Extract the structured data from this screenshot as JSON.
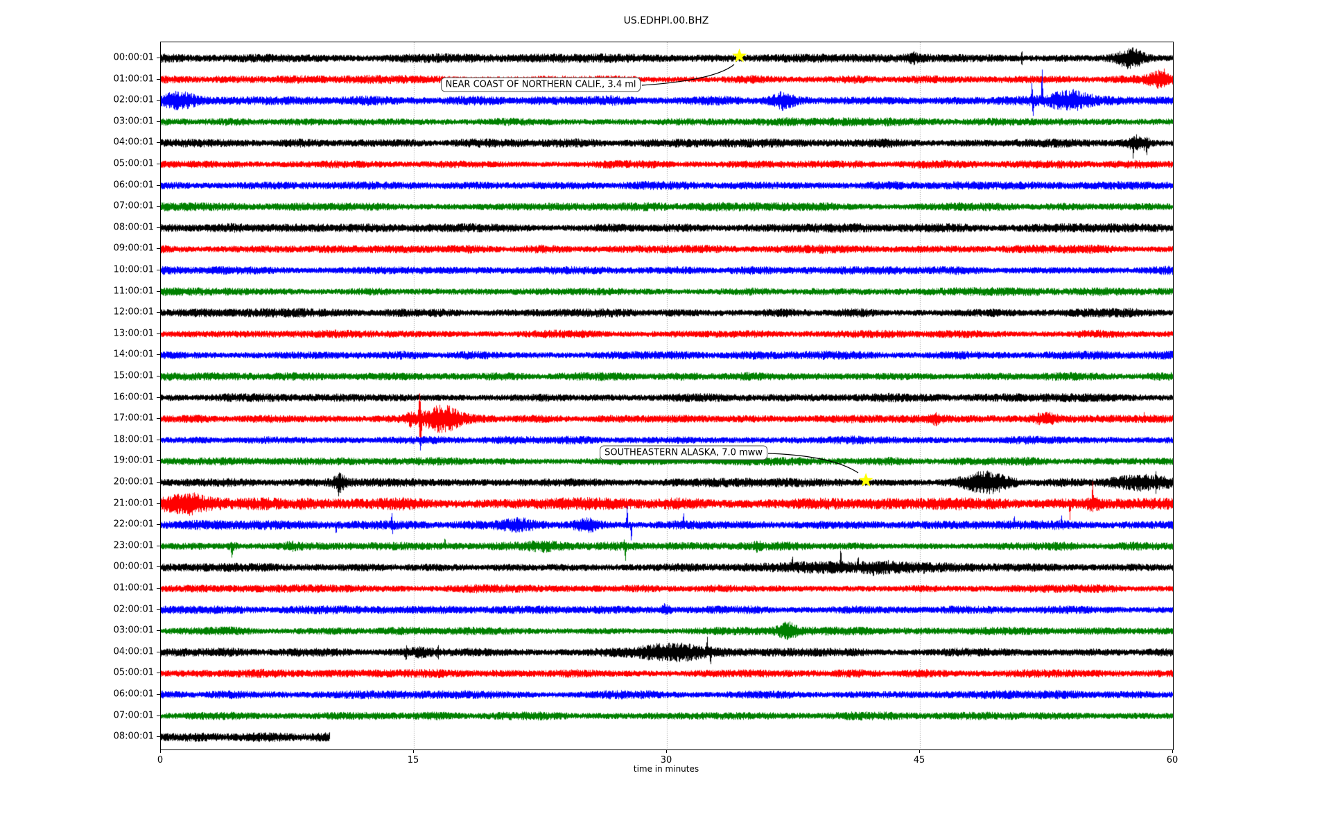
{
  "window": {
    "title": "US.EDHPI.00.BHZ"
  },
  "chart_data": {
    "type": "line",
    "variant": "seismogram-helicorder-dayplot",
    "title": "US.EDHPI.00.BHZ",
    "xlabel": "time in minutes",
    "xlim": [
      0,
      60
    ],
    "xticks": [
      0,
      15,
      30,
      45,
      60
    ],
    "grid": {
      "vertical_minutes": [
        15,
        30,
        45
      ],
      "style": "dotted",
      "color": "#999999"
    },
    "trace_colors": [
      "#000000",
      "#ff0000",
      "#0000ff",
      "#008000"
    ],
    "marker_color": "#ffff00",
    "background": "#ffffff",
    "legend_position": "none",
    "rows": [
      {
        "label": "00:00:01",
        "amp": 1.05,
        "end": 60,
        "events": [
          [
            "burst",
            44.3,
            44.9,
            1.6,
            0
          ],
          [
            "spike",
            50.95,
            51.1,
            3.0,
            0
          ],
          [
            "burst",
            56.5,
            58.4,
            2.6,
            0
          ],
          [
            "spike",
            57.2,
            57.35,
            4.5,
            -1
          ]
        ]
      },
      {
        "label": "01:00:01",
        "amp": 1.0,
        "end": 60,
        "events": [
          [
            "burst",
            58.4,
            60,
            2.8,
            0
          ],
          [
            "spike",
            59.4,
            59.55,
            4.5,
            1
          ]
        ]
      },
      {
        "label": "02:00:01",
        "amp": 1.15,
        "end": 60,
        "events": [
          [
            "burst",
            0,
            2.3,
            2.4,
            0
          ],
          [
            "spike",
            0.4,
            0.55,
            3.5,
            1
          ],
          [
            "spike",
            0.85,
            1.0,
            4.0,
            -1
          ],
          [
            "burst",
            36.2,
            37.6,
            2.2,
            0
          ],
          [
            "spike",
            51.55,
            51.7,
            6.0,
            1
          ],
          [
            "spike",
            51.6,
            51.78,
            5.0,
            -1
          ],
          [
            "spike",
            52.15,
            52.3,
            9.0,
            1
          ],
          [
            "burst",
            52.4,
            55.3,
            2.2,
            0
          ],
          [
            "spike",
            54.0,
            54.15,
            4.0,
            1
          ]
        ]
      },
      {
        "label": "03:00:01",
        "amp": 1.0,
        "end": 60,
        "events": []
      },
      {
        "label": "04:00:01",
        "amp": 1.05,
        "end": 60,
        "events": [
          [
            "burst",
            57.3,
            58.7,
            2.4,
            0
          ],
          [
            "spike",
            57.55,
            57.7,
            6.0,
            -1
          ],
          [
            "spike",
            58.35,
            58.5,
            5.0,
            -1
          ]
        ]
      },
      {
        "label": "05:00:01",
        "amp": 1.0,
        "end": 60,
        "events": []
      },
      {
        "label": "06:00:01",
        "amp": 1.0,
        "end": 60,
        "events": []
      },
      {
        "label": "07:00:01",
        "amp": 1.0,
        "end": 60,
        "events": []
      },
      {
        "label": "08:00:01",
        "amp": 1.05,
        "end": 60,
        "events": []
      },
      {
        "label": "09:00:01",
        "amp": 1.0,
        "end": 60,
        "events": []
      },
      {
        "label": "10:00:01",
        "amp": 1.0,
        "end": 60,
        "events": []
      },
      {
        "label": "11:00:01",
        "amp": 1.0,
        "end": 60,
        "events": []
      },
      {
        "label": "12:00:01",
        "amp": 1.05,
        "end": 60,
        "events": []
      },
      {
        "label": "13:00:01",
        "amp": 1.0,
        "end": 60,
        "events": []
      },
      {
        "label": "14:00:01",
        "amp": 1.0,
        "end": 60,
        "events": []
      },
      {
        "label": "15:00:01",
        "amp": 1.0,
        "end": 60,
        "events": []
      },
      {
        "label": "16:00:01",
        "amp": 1.05,
        "end": 60,
        "events": []
      },
      {
        "label": "17:00:01",
        "amp": 1.0,
        "end": 60,
        "events": [
          [
            "burst",
            14.5,
            15.1,
            1.8,
            0
          ],
          [
            "spike",
            15.2,
            15.45,
            6.5,
            1
          ],
          [
            "spike",
            15.25,
            15.5,
            7.0,
            -1
          ],
          [
            "burst",
            15.4,
            18.0,
            3.2,
            0
          ],
          [
            "spike",
            16.1,
            16.25,
            5.5,
            1
          ],
          [
            "burst",
            45.6,
            46.3,
            1.8,
            0
          ],
          [
            "burst",
            51.6,
            53.3,
            2.2,
            0
          ],
          [
            "spike",
            58.2,
            58.35,
            2.5,
            1
          ]
        ]
      },
      {
        "label": "18:00:01",
        "amp": 1.0,
        "end": 60,
        "events": [
          [
            "spike",
            15.3,
            15.45,
            4.0,
            -1
          ]
        ]
      },
      {
        "label": "19:00:01",
        "amp": 1.0,
        "end": 60,
        "events": []
      },
      {
        "label": "20:00:01",
        "amp": 1.05,
        "end": 60,
        "events": [
          [
            "burst",
            10.2,
            11.0,
            2.6,
            0
          ],
          [
            "spike",
            10.45,
            10.6,
            5.0,
            -1
          ],
          [
            "burst",
            47.0,
            50.5,
            2.8,
            0
          ],
          [
            "burst",
            56.0,
            60,
            2.2,
            0
          ],
          [
            "spike",
            58.9,
            59.05,
            4.0,
            0
          ]
        ]
      },
      {
        "label": "21:00:01",
        "amp": 1.5,
        "end": 60,
        "events": [
          [
            "burst",
            0,
            2.8,
            1.8,
            0
          ],
          [
            "burst",
            8.0,
            9.0,
            1.5,
            0
          ],
          [
            "spike",
            53.8,
            53.95,
            4.0,
            -1
          ],
          [
            "burst",
            54.8,
            55.8,
            1.8,
            0
          ],
          [
            "spike",
            55.15,
            55.3,
            6.0,
            1
          ]
        ]
      },
      {
        "label": "22:00:01",
        "amp": 1.1,
        "end": 60,
        "events": [
          [
            "spike",
            10.3,
            10.45,
            3.5,
            -1
          ],
          [
            "spike",
            13.6,
            13.75,
            4.5,
            1
          ],
          [
            "spike",
            13.65,
            13.8,
            3.0,
            -1
          ],
          [
            "burst",
            20.0,
            22.5,
            1.8,
            0
          ],
          [
            "burst",
            24.4,
            26.2,
            2.2,
            0
          ],
          [
            "spike",
            27.55,
            27.7,
            7.0,
            1
          ],
          [
            "spike",
            27.8,
            27.95,
            6.0,
            -1
          ],
          [
            "spike",
            30.9,
            31.05,
            4.5,
            1
          ],
          [
            "spike",
            50.5,
            50.65,
            3.5,
            1
          ],
          [
            "spike",
            53.3,
            53.45,
            3.5,
            1
          ]
        ]
      },
      {
        "label": "23:00:01",
        "amp": 1.0,
        "end": 60,
        "events": [
          [
            "burst",
            3.9,
            4.6,
            1.8,
            0
          ],
          [
            "spike",
            4.1,
            4.3,
            4.5,
            -1
          ],
          [
            "burst",
            7.4,
            8.0,
            1.6,
            0
          ],
          [
            "spike",
            16.75,
            16.9,
            3.5,
            1
          ],
          [
            "burst",
            21.6,
            23.8,
            1.7,
            0
          ],
          [
            "spike",
            27.4,
            27.5,
            2.5,
            1
          ],
          [
            "spike",
            27.45,
            27.6,
            6.0,
            -1
          ],
          [
            "burst",
            35.1,
            35.6,
            1.8,
            0
          ]
        ]
      },
      {
        "label": "00:00:01",
        "amp": 1.05,
        "end": 60,
        "events": [
          [
            "burst",
            36.6,
            44.5,
            2.0,
            0
          ],
          [
            "spike",
            37.35,
            37.5,
            4.5,
            1
          ],
          [
            "spike",
            40.2,
            40.38,
            7.0,
            1
          ],
          [
            "spike",
            41.25,
            41.4,
            4.5,
            1
          ],
          [
            "spike",
            42.15,
            42.3,
            4.0,
            -1
          ],
          [
            "spike",
            45.15,
            45.3,
            3.0,
            -1
          ]
        ]
      },
      {
        "label": "01:00:01",
        "amp": 1.0,
        "end": 60,
        "events": []
      },
      {
        "label": "02:00:01",
        "amp": 1.0,
        "end": 60,
        "events": [
          [
            "burst",
            29.5,
            30.3,
            1.6,
            0
          ],
          [
            "spike",
            29.75,
            29.95,
            2.8,
            1
          ]
        ]
      },
      {
        "label": "03:00:01",
        "amp": 1.0,
        "end": 60,
        "events": [
          [
            "burst",
            36.4,
            37.9,
            2.6,
            0
          ],
          [
            "spike",
            36.9,
            37.05,
            4.0,
            1
          ],
          [
            "spike",
            37.2,
            37.35,
            3.5,
            1
          ]
        ]
      },
      {
        "label": "04:00:01",
        "amp": 1.05,
        "end": 60,
        "events": [
          [
            "burst",
            14.3,
            16.6,
            1.7,
            0
          ],
          [
            "spike",
            14.45,
            14.6,
            3.5,
            -1
          ],
          [
            "spike",
            14.5,
            14.62,
            3.0,
            1
          ],
          [
            "spike",
            16.35,
            16.5,
            3.0,
            0
          ],
          [
            "burst",
            28.0,
            33.0,
            2.2,
            0
          ],
          [
            "spike",
            29.3,
            29.45,
            3.5,
            1
          ],
          [
            "spike",
            32.3,
            32.45,
            6.0,
            1
          ],
          [
            "spike",
            32.5,
            32.65,
            5.0,
            -1
          ]
        ]
      },
      {
        "label": "05:00:01",
        "amp": 1.0,
        "end": 60,
        "events": []
      },
      {
        "label": "06:00:01",
        "amp": 1.0,
        "end": 60,
        "events": []
      },
      {
        "label": "07:00:01",
        "amp": 1.0,
        "end": 60,
        "events": []
      },
      {
        "label": "08:00:01",
        "amp": 1.15,
        "end": 10,
        "events": []
      }
    ],
    "annotations": [
      {
        "text": "NEAR COAST OF NORTHERN CALIF., 3.4 ml",
        "marker": "star",
        "marker_row": 0,
        "marker_minute": 34.3,
        "box_right_minute": 28.5,
        "box_row": 1.27
      },
      {
        "text": "SOUTHEASTERN ALASKA, 7.0 mww",
        "marker": "star",
        "marker_row": 20,
        "marker_minute": 41.8,
        "box_right_minute": 36.0,
        "box_row": 18.63
      }
    ]
  }
}
